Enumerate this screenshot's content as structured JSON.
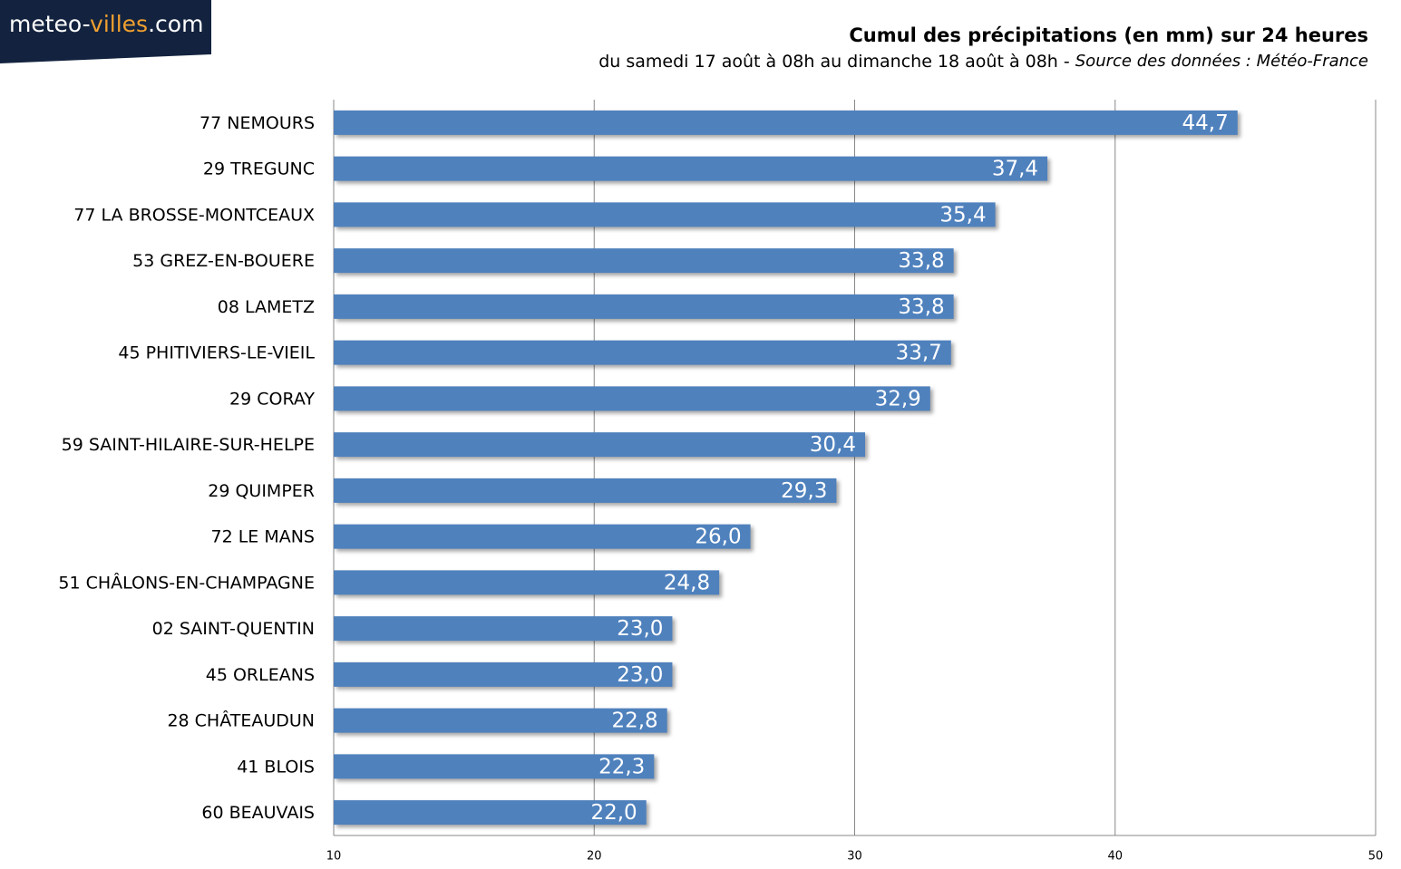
{
  "logo": {
    "part1": "meteo-",
    "part2": "villes",
    "part3": ".com"
  },
  "chart_data": {
    "type": "bar",
    "orientation": "horizontal",
    "title": "Cumul des précipitations (en mm) sur 24 heures",
    "subtitle": "du samedi 17 août à 08h au dimanche 18 août à 08h -",
    "source": "Source des données : Météo-France",
    "categories": [
      "77 NEMOURS",
      "29 TREGUNC",
      "77 LA BROSSE-MONTCEAUX",
      "53 GREZ-EN-BOUERE",
      "08 LAMETZ",
      "45 PHITIVIERS-LE-VIEIL",
      "29 CORAY",
      "59 SAINT-HILAIRE-SUR-HELPE",
      "29 QUIMPER",
      "72 LE MANS",
      "51 CHÂLONS-EN-CHAMPAGNE",
      "02 SAINT-QUENTIN",
      "45 ORLEANS",
      "28 CHÂTEAUDUN",
      "41 BLOIS",
      "60 BEAUVAIS"
    ],
    "values": [
      44.7,
      37.4,
      35.4,
      33.8,
      33.8,
      33.7,
      32.9,
      30.4,
      29.3,
      26.0,
      24.8,
      23.0,
      23.0,
      22.8,
      22.3,
      22.0
    ],
    "value_labels": [
      "44,7",
      "37,4",
      "35,4",
      "33,8",
      "33,8",
      "33,7",
      "32,9",
      "30,4",
      "29,3",
      "26,0",
      "24,8",
      "23,0",
      "23,0",
      "22,8",
      "22,3",
      "22,0"
    ],
    "color": "#4f81bd",
    "xlim": [
      10,
      50
    ],
    "xticks": [
      10,
      20,
      30,
      40,
      50
    ],
    "grid": true
  }
}
